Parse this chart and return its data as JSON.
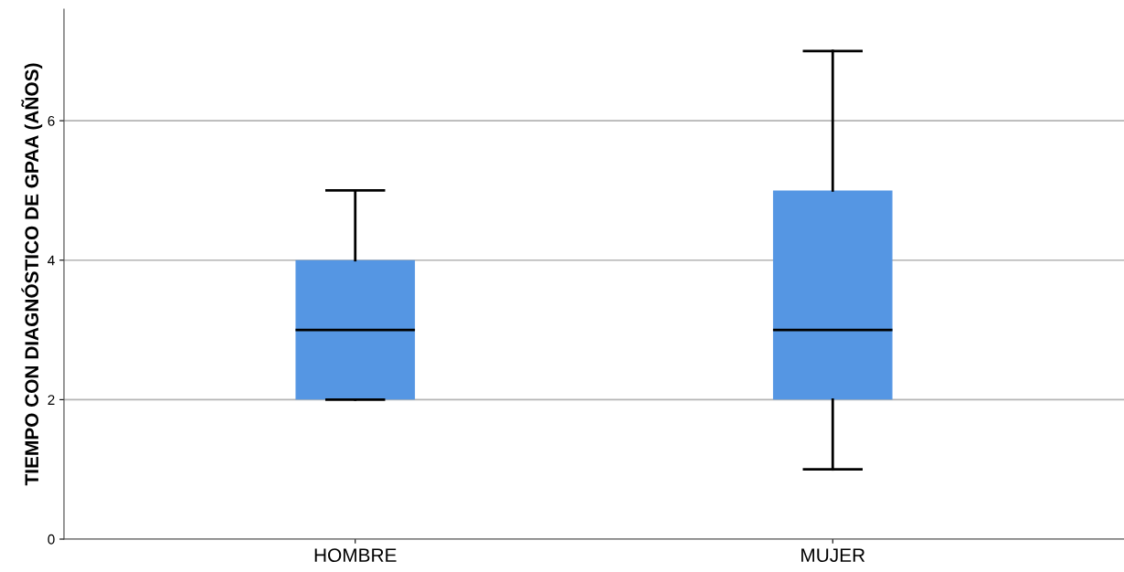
{
  "chart_data": {
    "type": "box",
    "ylabel": "TIEMPO CON DIAGNÓSTICO DE GPAA (AÑOS)",
    "categories": [
      "HOMBRE",
      "MUJER"
    ],
    "color": "#5596e3",
    "boxes": [
      {
        "low": 2,
        "q1": 2,
        "median": 3,
        "q3": 4,
        "high": 5
      },
      {
        "low": 1,
        "q1": 2,
        "median": 3,
        "q3": 5,
        "high": 7
      }
    ],
    "ylim": [
      0,
      7.6
    ],
    "yticks": [
      0,
      2,
      4,
      6
    ],
    "grid": "y"
  }
}
